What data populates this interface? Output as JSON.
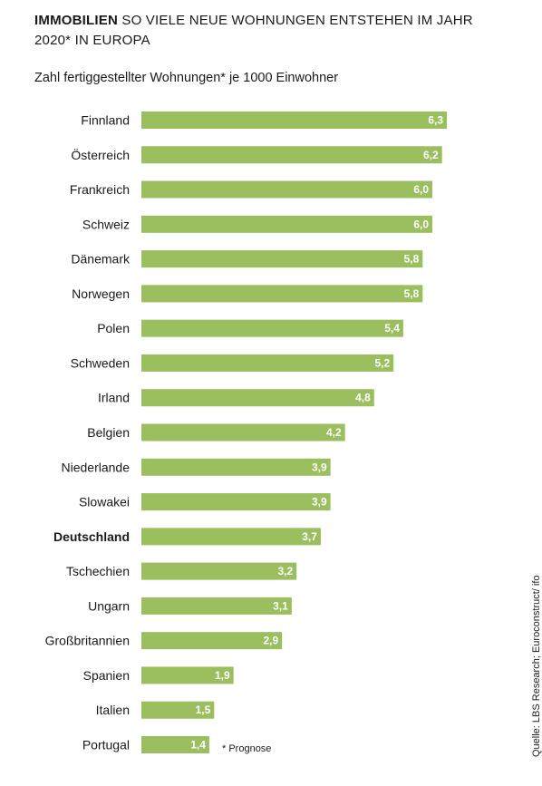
{
  "header": {
    "title_bold": "IMMOBILIEN",
    "title_rest": " SO VIELE NEUE WOHNUNGEN ENTSTEHEN IM JAHR 2020* IN EUROPA",
    "subtitle": "Zahl fertiggestellter Wohnungen* je 1000 Einwohner"
  },
  "footnote": "* Prognose",
  "source": "Quelle: LBS Research; Euroconstruct/ ifo",
  "colors": {
    "bar": "#9bbf5f",
    "value_text": "#ffffff"
  },
  "chart_data": {
    "type": "bar",
    "orientation": "horizontal",
    "categories": [
      "Finnland",
      "Österreich",
      "Frankreich",
      "Schweiz",
      "Dänemark",
      "Norwegen",
      "Polen",
      "Schweden",
      "Irland",
      "Belgien",
      "Niederlande",
      "Slowakei",
      "Deutschland",
      "Tschechien",
      "Ungarn",
      "Großbritannien",
      "Spanien",
      "Italien",
      "Portugal"
    ],
    "values": [
      6.3,
      6.2,
      6.0,
      6.0,
      5.8,
      5.8,
      5.4,
      5.2,
      4.8,
      4.2,
      3.9,
      3.9,
      3.7,
      3.2,
      3.1,
      2.9,
      1.9,
      1.5,
      1.4
    ],
    "value_labels": [
      "6,3",
      "6,2",
      "6,0",
      "6,0",
      "5,8",
      "5,8",
      "5,4",
      "5,2",
      "4,8",
      "4,2",
      "3,9",
      "3,9",
      "3,7",
      "3,2",
      "3,1",
      "2,9",
      "1,9",
      "1,5",
      "1,4"
    ],
    "highlight": "Deutschland",
    "grid": false,
    "legend": "none"
  }
}
